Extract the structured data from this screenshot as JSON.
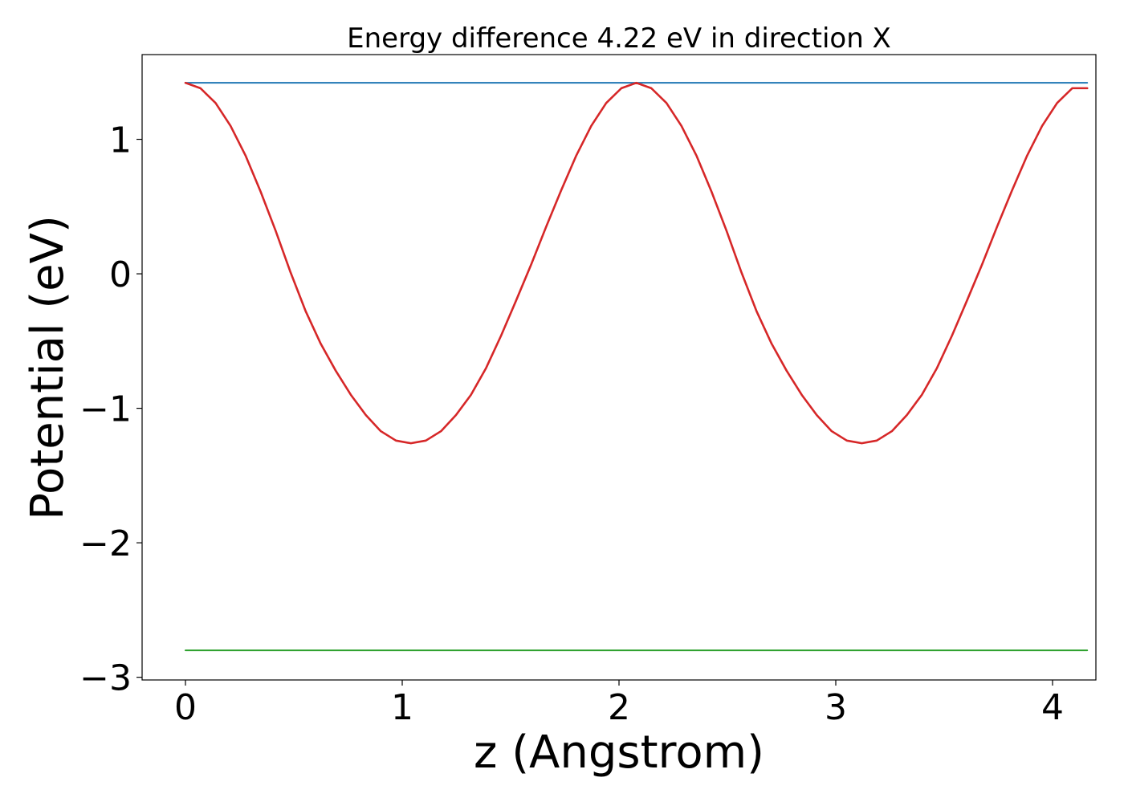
{
  "chart_data": {
    "type": "line",
    "title": "Energy difference 4.22 eV in direction X",
    "xlabel": "z (Angstrom)",
    "ylabel": "Potential (eV)",
    "xlim": [
      -0.2,
      4.2
    ],
    "ylim": [
      -3.02,
      1.63
    ],
    "xticks": [
      {
        "value": 0,
        "label": "0"
      },
      {
        "value": 1,
        "label": "1"
      },
      {
        "value": 2,
        "label": "2"
      },
      {
        "value": 3,
        "label": "3"
      },
      {
        "value": 4,
        "label": "4"
      }
    ],
    "yticks": [
      {
        "value": 1,
        "label": "1"
      },
      {
        "value": 0,
        "label": "0"
      },
      {
        "value": -1,
        "label": "−1"
      },
      {
        "value": -2,
        "label": "−2"
      },
      {
        "value": -3,
        "label": "−3"
      }
    ],
    "grid": false,
    "legend": "none",
    "series": [
      {
        "color": "#1f77b4",
        "x": [
          0,
          4.16
        ],
        "y": [
          1.42,
          1.42
        ]
      },
      {
        "color": "#2ca02c",
        "x": [
          0,
          4.16
        ],
        "y": [
          -2.8,
          -2.8
        ]
      },
      {
        "color": "#d62728",
        "x": [
          0.0,
          0.069,
          0.139,
          0.208,
          0.277,
          0.347,
          0.416,
          0.485,
          0.555,
          0.624,
          0.693,
          0.763,
          0.832,
          0.901,
          0.971,
          1.04,
          1.109,
          1.179,
          1.248,
          1.317,
          1.387,
          1.456,
          1.525,
          1.595,
          1.664,
          1.733,
          1.803,
          1.872,
          1.941,
          2.011,
          2.08,
          2.149,
          2.219,
          2.288,
          2.357,
          2.427,
          2.496,
          2.565,
          2.635,
          2.704,
          2.773,
          2.843,
          2.912,
          2.981,
          3.051,
          3.12,
          3.189,
          3.259,
          3.328,
          3.397,
          3.467,
          3.536,
          3.605,
          3.675,
          3.744,
          3.813,
          3.883,
          3.952,
          4.021,
          4.091,
          4.16
        ],
        "y": [
          1.42,
          1.38,
          1.27,
          1.1,
          0.88,
          0.61,
          0.32,
          0.01,
          -0.28,
          -0.52,
          -0.72,
          -0.9,
          -1.05,
          -1.17,
          -1.24,
          -1.26,
          -1.24,
          -1.17,
          -1.05,
          -0.9,
          -0.7,
          -0.46,
          -0.2,
          0.07,
          0.35,
          0.62,
          0.88,
          1.1,
          1.27,
          1.38,
          1.42,
          1.38,
          1.27,
          1.1,
          0.88,
          0.61,
          0.32,
          0.01,
          -0.28,
          -0.52,
          -0.72,
          -0.9,
          -1.05,
          -1.17,
          -1.24,
          -1.26,
          -1.24,
          -1.17,
          -1.05,
          -0.9,
          -0.7,
          -0.46,
          -0.2,
          0.07,
          0.35,
          0.62,
          0.88,
          1.1,
          1.27,
          1.38,
          1.38
        ]
      }
    ]
  }
}
